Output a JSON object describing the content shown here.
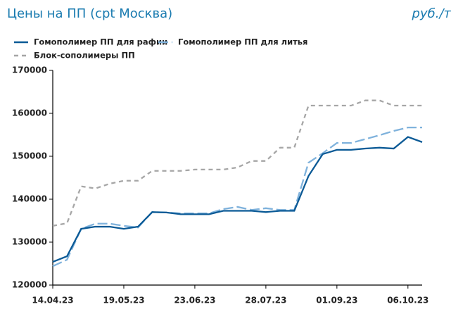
{
  "chart_data": {
    "type": "line",
    "title": "Цены на ПП (cpt Москва)",
    "unit_label": "руб./т",
    "categories": [
      "14.04.23",
      null,
      null,
      null,
      null,
      "19.05.23",
      null,
      null,
      null,
      null,
      "23.06.23",
      null,
      null,
      null,
      null,
      "28.07.23",
      null,
      null,
      null,
      null,
      "01.09.23",
      null,
      null,
      null,
      null,
      "06.10.23",
      null
    ],
    "series": [
      {
        "name": "Гомополимер ПП для рафии",
        "color": "#0b5a96",
        "dash": "solid",
        "values": [
          125400,
          126700,
          133100,
          133600,
          133600,
          133100,
          133600,
          137000,
          136900,
          136500,
          136500,
          136500,
          137300,
          137300,
          137300,
          137000,
          137300,
          137300,
          145400,
          150500,
          151500,
          151500,
          151800,
          152000,
          151800,
          154500,
          153300
        ]
      },
      {
        "name": "Гомополимер ПП для литья",
        "color": "#7fb2dc",
        "dash": "long",
        "values": [
          124400,
          125900,
          133100,
          134300,
          134300,
          133800,
          133400,
          137000,
          136900,
          136700,
          136700,
          136700,
          137700,
          138200,
          137500,
          137900,
          137500,
          137500,
          148500,
          150700,
          153100,
          153100,
          154000,
          154900,
          155900,
          156700,
          156700
        ]
      },
      {
        "name": "Блок-сополимеры ПП",
        "color": "#a6a6a6",
        "dash": "short",
        "values": [
          133800,
          134400,
          143000,
          142500,
          143600,
          144300,
          144300,
          146600,
          146600,
          146600,
          146900,
          146900,
          146900,
          147400,
          148900,
          148900,
          152000,
          152000,
          161800,
          161800,
          161800,
          161800,
          163000,
          163000,
          161800,
          161800,
          161800
        ]
      }
    ],
    "ylim": [
      120000,
      170000
    ],
    "yticks": [
      120000,
      130000,
      140000,
      150000,
      160000,
      170000
    ],
    "grid": false
  }
}
